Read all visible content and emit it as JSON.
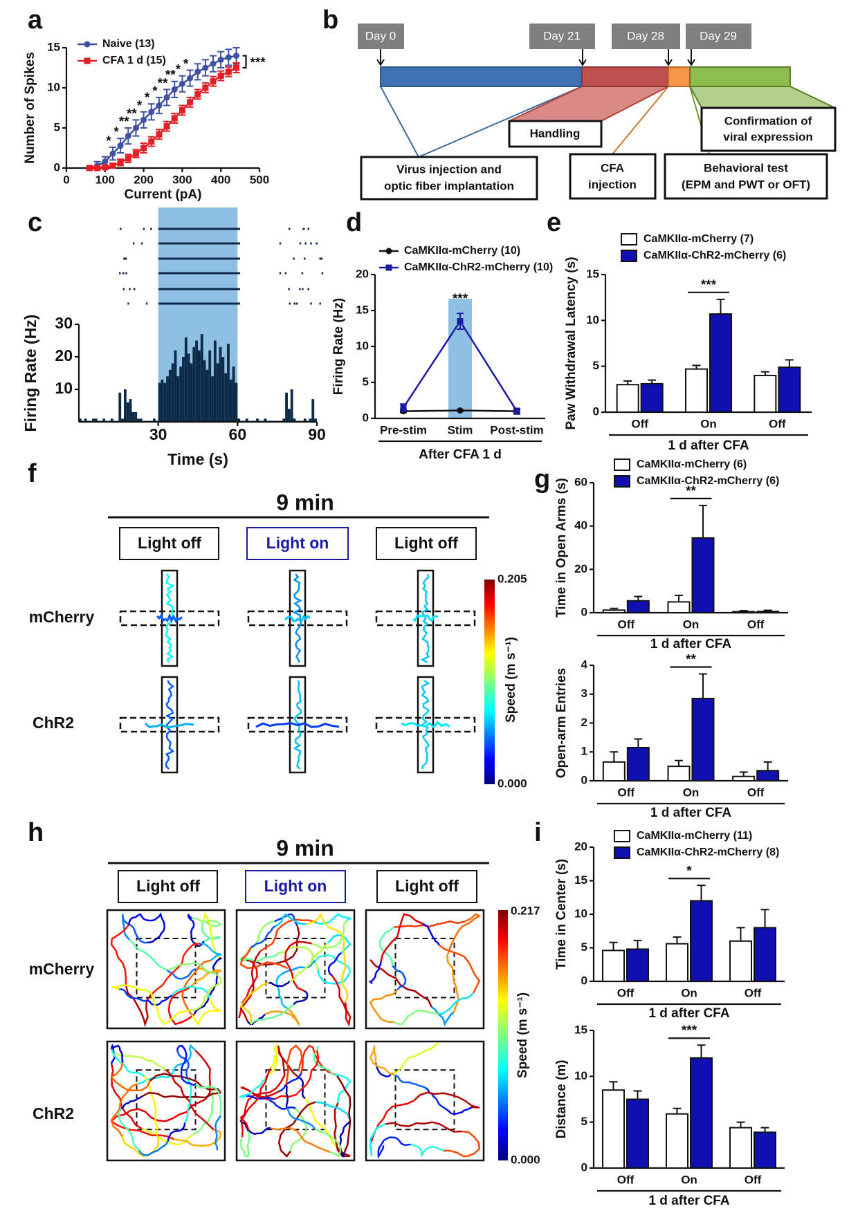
{
  "panels": [
    "a",
    "b",
    "c",
    "d",
    "e",
    "f",
    "g",
    "h",
    "i"
  ],
  "timeline": {
    "days": [
      "Day 0",
      "Day 21",
      "Day 28",
      "Day 29"
    ],
    "handling": "Handling",
    "virus": [
      "Virus injection and",
      "optic fiber implantation"
    ],
    "cfa": [
      "CFA",
      "injection"
    ],
    "behavior": [
      "Behavioral test",
      "(EPM and PWT or OFT)"
    ],
    "confirmation": [
      "Confirmation of",
      "viral expression"
    ]
  },
  "epm": {
    "title": "9 min",
    "conditions": [
      "Light off",
      "Light on",
      "Light off"
    ],
    "groups": [
      "mCherry",
      "ChR2"
    ],
    "colorbar": {
      "max": "0.205",
      "min": "0.000",
      "label": "Speed (m s⁻¹)"
    }
  },
  "oft": {
    "title": "9 min",
    "conditions": [
      "Light off",
      "Light on",
      "Light off"
    ],
    "groups": [
      "mCherry",
      "ChR2"
    ],
    "colorbar": {
      "max": "0.217",
      "min": "0.000",
      "label": "Speed (m s⁻¹)"
    }
  },
  "chart_data": [
    {
      "type": "line",
      "xlabel": "Current (pA)",
      "ylabel": "Number of Spikes",
      "x": [
        60,
        80,
        100,
        120,
        140,
        160,
        180,
        200,
        220,
        240,
        260,
        280,
        300,
        320,
        340,
        360,
        380,
        400,
        420,
        440
      ],
      "series": [
        {
          "name": "Naive (13)",
          "color": "#3f51a3",
          "values": [
            0,
            0.3,
            0.8,
            1.8,
            2.8,
            4,
            5,
            6,
            7,
            7.8,
            8.8,
            9.8,
            10.5,
            11.2,
            12,
            12.5,
            13,
            13.5,
            13.8,
            14
          ],
          "errors": [
            0.2,
            0.5,
            0.6,
            0.8,
            0.9,
            1,
            1,
            1,
            1,
            1,
            1,
            1,
            1,
            1,
            1,
            1,
            1,
            1,
            1,
            1
          ]
        },
        {
          "name": "CFA 1 d (15)",
          "color": "#e31e24",
          "values": [
            0,
            0,
            0.1,
            0.3,
            0.7,
            1.2,
            1.8,
            2.5,
            3.3,
            4.2,
            5.2,
            6.2,
            7.2,
            8.2,
            9.2,
            10,
            10.8,
            11.5,
            12,
            12.5
          ],
          "errors": [
            0.1,
            0.1,
            0.2,
            0.3,
            0.4,
            0.5,
            0.5,
            0.6,
            0.6,
            0.6,
            0.6,
            0.6,
            0.6,
            0.6,
            0.6,
            0.6,
            0.6,
            0.6,
            0.6,
            0.6
          ]
        }
      ],
      "xlim": [
        0,
        500
      ],
      "xticks": [
        0,
        100,
        200,
        300,
        400,
        500
      ],
      "ylim": [
        0,
        15
      ],
      "yticks": [
        0,
        5,
        10,
        15
      ],
      "annotations": [
        {
          "text": "*",
          "x": 120
        },
        {
          "text": "*",
          "x": 140
        },
        {
          "text": "**",
          "x": 160
        },
        {
          "text": "**",
          "x": 180
        },
        {
          "text": "*",
          "x": 200
        },
        {
          "text": "*",
          "x": 220
        },
        {
          "text": "*",
          "x": 240
        },
        {
          "text": "**",
          "x": 260
        },
        {
          "text": "**",
          "x": 280
        },
        {
          "text": "*",
          "x": 300
        },
        {
          "text": "*",
          "x": 320
        }
      ],
      "significance": "***"
    },
    {
      "type": "histogram",
      "xlabel": "Time (s)",
      "ylabel": "Firing Rate (Hz)",
      "bins": [
        0,
        1,
        2,
        3,
        4,
        5,
        6,
        7,
        8,
        9,
        10,
        11,
        12,
        13,
        14,
        15,
        16,
        17,
        18,
        19,
        20,
        21,
        22,
        23,
        24,
        25,
        26,
        27,
        28,
        29,
        30,
        31,
        32,
        33,
        34,
        35,
        36,
        37,
        38,
        39,
        40,
        41,
        42,
        43,
        44,
        45,
        46,
        47,
        48,
        49,
        50,
        51,
        52,
        53,
        54,
        55,
        56,
        57,
        58,
        59,
        60,
        61,
        62,
        63,
        64,
        65,
        66,
        67,
        68,
        69,
        70,
        71,
        72,
        73,
        74,
        75,
        76,
        77,
        78,
        79,
        80,
        81,
        82,
        83,
        84,
        85,
        86,
        87,
        88,
        89,
        90
      ],
      "counts": [
        1,
        0,
        1,
        0,
        0,
        1,
        1,
        0,
        0,
        1,
        0,
        0,
        1,
        0,
        0,
        9,
        1,
        10,
        6,
        7,
        3,
        3,
        1,
        1,
        0,
        0,
        0,
        0,
        1,
        0,
        12,
        13,
        12,
        14,
        16,
        18,
        22,
        14,
        17,
        20,
        26,
        21,
        18,
        23,
        25,
        22,
        27,
        19,
        16,
        22,
        14,
        25,
        18,
        23,
        20,
        15,
        24,
        13,
        17,
        12,
        1,
        0,
        0,
        1,
        0,
        0,
        0,
        1,
        0,
        0,
        1,
        0,
        0,
        0,
        0,
        0,
        0,
        1,
        9,
        4,
        10,
        1,
        0,
        0,
        0,
        1,
        0,
        1,
        7,
        1
      ],
      "color": "#0d2a48",
      "xlim": [
        0,
        90
      ],
      "xticks": [
        30,
        60,
        90
      ],
      "ylim": [
        0,
        30
      ],
      "yticks": [
        10,
        20,
        30
      ],
      "stimulus": [
        30,
        60
      ],
      "stimulus_color": "#8fbfe2"
    },
    {
      "type": "line",
      "xlabel": "After CFA 1 d",
      "ylabel": "Firing Rate (Hz)",
      "categories": [
        "Pre-stim",
        "Stim",
        "Post-stim"
      ],
      "series": [
        {
          "name": "CaMKIIα-mCherry (10)",
          "color": "#111111",
          "values": [
            1,
            1.1,
            1
          ],
          "errors": [
            0.2,
            0.1,
            0.2
          ]
        },
        {
          "name": "CaMKIIα-ChR2-mCherry (10)",
          "color": "#1a1aa6",
          "values": [
            1.5,
            13.5,
            1
          ],
          "errors": [
            0.5,
            1.1,
            0.4
          ]
        }
      ],
      "ylim": [
        0,
        20
      ],
      "yticks": [
        0,
        5,
        10,
        15,
        20
      ],
      "highlight": 1,
      "highlight_color": "#8fbfe2",
      "annotations": [
        {
          "text": "***",
          "at": 1
        }
      ]
    },
    {
      "type": "bar",
      "xlabel": "1 d after CFA",
      "ylabel": "Paw Withdrawal Latency (s)",
      "categories": [
        "Off",
        "On",
        "Off"
      ],
      "series": [
        {
          "name": "CaMKIIα-mCherry (7)",
          "color": "#ffffff",
          "values": [
            3,
            4.7,
            4
          ],
          "errors": [
            0.4,
            0.4,
            0.4
          ]
        },
        {
          "name": "CaMKIIα-ChR2-mCherry (6)",
          "color": "#1010b0",
          "values": [
            3.1,
            10.7,
            4.9
          ],
          "errors": [
            0.4,
            1.6,
            0.8
          ]
        }
      ],
      "ylim": [
        0,
        15
      ],
      "yticks": [
        0,
        5,
        10,
        15
      ],
      "annotations": [
        {
          "text": "***",
          "at": 1
        }
      ]
    },
    {
      "type": "bar",
      "xlabel": "1 d after CFA",
      "ylabel": "Time in Open Arms (s)",
      "categories": [
        "Off",
        "On",
        "Off"
      ],
      "series": [
        {
          "name": "CaMKIIα-mCherry (6)",
          "color": "#ffffff",
          "values": [
            1.2,
            5,
            0.5
          ],
          "errors": [
            0.8,
            3,
            0.4
          ]
        },
        {
          "name": "CaMKIIα-ChR2-mCherry (6)",
          "color": "#1010b0",
          "values": [
            5.5,
            34.5,
            0.6
          ],
          "errors": [
            2,
            15,
            0.5
          ]
        }
      ],
      "ylim": [
        0,
        60
      ],
      "yticks": [
        0,
        20,
        40,
        60
      ],
      "annotations": [
        {
          "text": "**",
          "at": 1
        }
      ]
    },
    {
      "type": "bar",
      "xlabel": "1 d after CFA",
      "ylabel": "Open-arm Entries",
      "categories": [
        "Off",
        "On",
        "Off"
      ],
      "series": [
        {
          "color": "#ffffff",
          "values": [
            0.65,
            0.5,
            0.15
          ],
          "errors": [
            0.35,
            0.2,
            0.15
          ]
        },
        {
          "color": "#1010b0",
          "values": [
            1.15,
            2.85,
            0.35
          ],
          "errors": [
            0.3,
            0.85,
            0.3
          ]
        }
      ],
      "ylim": [
        0,
        4
      ],
      "yticks": [
        0,
        1,
        2,
        3,
        4
      ],
      "annotations": [
        {
          "text": "**",
          "at": 1
        }
      ]
    },
    {
      "type": "bar",
      "xlabel": "1 d after CFA",
      "ylabel": "Time in Center (s)",
      "categories": [
        "Off",
        "On",
        "Off"
      ],
      "series": [
        {
          "name": "CaMKIIα-mCherry (11)",
          "color": "#ffffff",
          "values": [
            4.6,
            5.6,
            6
          ],
          "errors": [
            1.2,
            1,
            2
          ]
        },
        {
          "name": "CaMKIIα-ChR2-mCherry (8)",
          "color": "#1010b0",
          "values": [
            4.8,
            12,
            8
          ],
          "errors": [
            1.3,
            2.3,
            2.7
          ]
        }
      ],
      "ylim": [
        0,
        20
      ],
      "yticks": [
        0,
        5,
        10,
        15,
        20
      ],
      "annotations": [
        {
          "text": "*",
          "at": 1
        }
      ]
    },
    {
      "type": "bar",
      "xlabel": "1 d after CFA",
      "ylabel": "Distance (m)",
      "categories": [
        "Off",
        "On",
        "Off"
      ],
      "series": [
        {
          "color": "#ffffff",
          "values": [
            8.5,
            5.9,
            4.4
          ],
          "errors": [
            0.9,
            0.6,
            0.6
          ]
        },
        {
          "color": "#1010b0",
          "values": [
            7.5,
            12,
            3.9
          ],
          "errors": [
            0.9,
            1.4,
            0.5
          ]
        }
      ],
      "ylim": [
        0,
        15
      ],
      "yticks": [
        0,
        5,
        10,
        15
      ],
      "annotations": [
        {
          "text": "***",
          "at": 1
        }
      ]
    }
  ]
}
